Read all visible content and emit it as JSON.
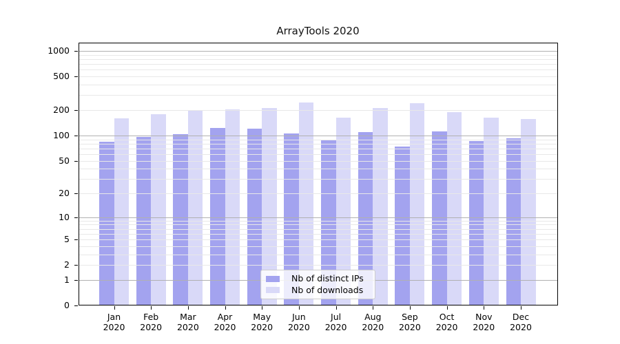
{
  "chart_data": {
    "type": "bar",
    "title": "ArrayTools 2020",
    "categories": [
      "Jan",
      "Feb",
      "Mar",
      "Apr",
      "May",
      "Jun",
      "Jul",
      "Aug",
      "Sep",
      "Oct",
      "Nov",
      "Dec"
    ],
    "x_year": "2020",
    "series": [
      {
        "name": "Nb of distinct IPs",
        "color": "#a3a3ef",
        "values": [
          84,
          97,
          104,
          123,
          121,
          105,
          90,
          110,
          74,
          112,
          86,
          92
        ]
      },
      {
        "name": "Nb of downloads",
        "color": "#d9d9f8",
        "values": [
          160,
          180,
          198,
          204,
          211,
          245,
          164,
          211,
          240,
          189,
          164,
          156
        ]
      }
    ],
    "yscale": "log1p",
    "yticks": [
      0,
      1,
      2,
      5,
      10,
      20,
      50,
      100,
      200,
      500,
      1000
    ],
    "major_grid_values": [
      1,
      10,
      100,
      1000
    ],
    "ylim": [
      0,
      1265
    ],
    "grid": true,
    "legend_position": "lower center"
  },
  "colors": {
    "major_grid": "#b0b0b0",
    "minor_grid": "#e8e8e8",
    "spine": "#000000",
    "text": "#000000",
    "legend_border": "#cccccc",
    "background": "#ffffff"
  }
}
